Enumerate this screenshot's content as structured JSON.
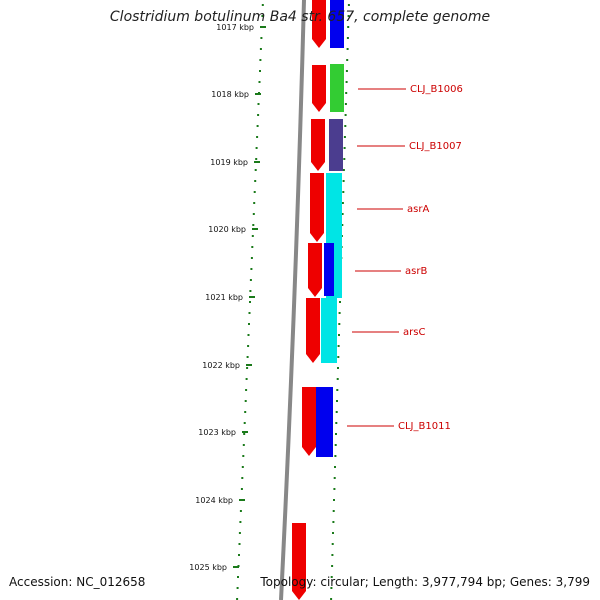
{
  "title": "Clostridium botulinum Ba4 str. 657, complete genome",
  "footer": {
    "accession": "Accession: NC_012658",
    "summary": "Topology: circular; Length: 3,977,794 bp; Genes: 3,799"
  },
  "ticks": [
    {
      "label": "1017 kbp"
    },
    {
      "label": "1018 kbp"
    },
    {
      "label": "1019 kbp"
    },
    {
      "label": "1020 kbp"
    },
    {
      "label": "1021 kbp"
    },
    {
      "label": "1022 kbp"
    },
    {
      "label": "1023 kbp"
    },
    {
      "label": "1024 kbp"
    },
    {
      "label": "1025 kbp"
    }
  ],
  "genes": [
    {
      "label": "",
      "color": "#0000ee"
    },
    {
      "label": "CLJ_B1006",
      "color": "#33cc33"
    },
    {
      "label": "CLJ_B1007",
      "color": "#4b3d8f"
    },
    {
      "label": "asrA",
      "color": "#00e5e5"
    },
    {
      "label": "asrB",
      "color": "#0000ee"
    },
    {
      "label": "arsC",
      "color": "#00e5e5"
    },
    {
      "label": "CLJ_B1011",
      "color": "#0000ee"
    }
  ],
  "cds_color": "#ee0000",
  "backbone_color": "#888888",
  "tick_color": "#1a7a1a"
}
